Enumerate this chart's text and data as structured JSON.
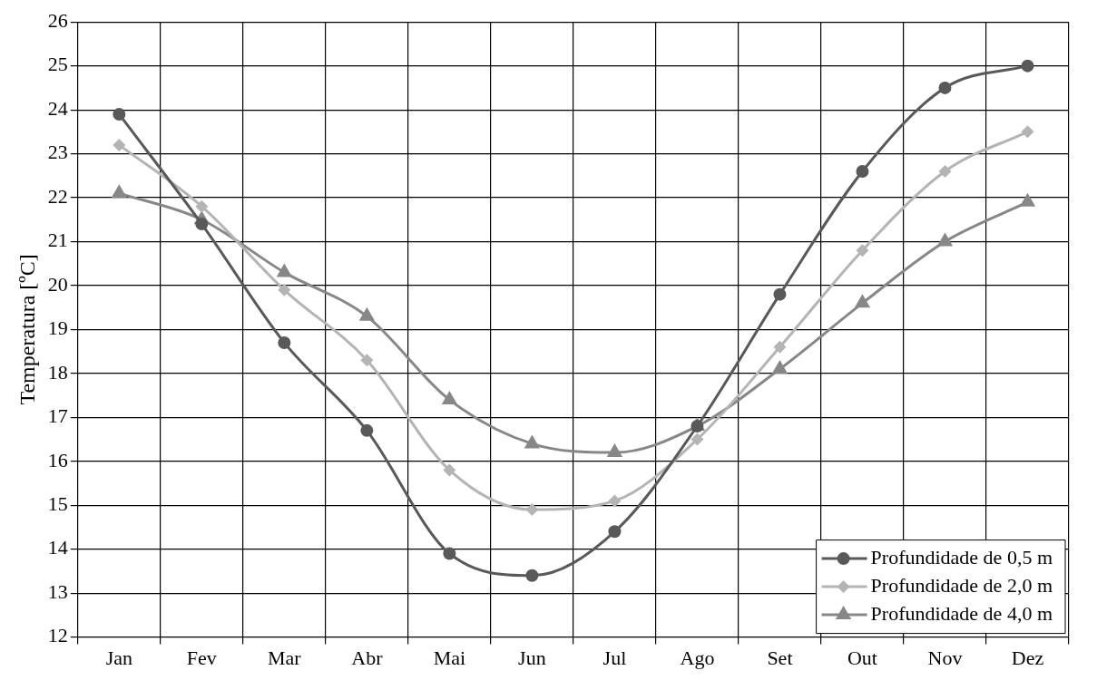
{
  "chart_data": {
    "type": "line",
    "ylabel": "Temperatura [ºC]",
    "categories": [
      "Jan",
      "Fev",
      "Mar",
      "Abr",
      "Mai",
      "Jun",
      "Jul",
      "Ago",
      "Set",
      "Out",
      "Nov",
      "Dez"
    ],
    "ylim": [
      12,
      26
    ],
    "yticks": [
      12,
      13,
      14,
      15,
      16,
      17,
      18,
      19,
      20,
      21,
      22,
      23,
      24,
      25,
      26
    ],
    "grid": true,
    "legend": "bottom right",
    "line_style": "solid",
    "series": [
      {
        "name": "Profundidade de 0,5 m",
        "color": "#595959",
        "marker": "circle",
        "values": [
          23.9,
          21.4,
          18.7,
          16.7,
          13.9,
          13.4,
          14.4,
          16.8,
          19.8,
          22.6,
          24.5,
          25.0
        ]
      },
      {
        "name": "Profundidade de 2,0 m",
        "color": "#b4b4b4",
        "marker": "diamond",
        "values": [
          23.2,
          21.8,
          19.9,
          18.3,
          15.8,
          14.9,
          15.1,
          16.5,
          18.6,
          20.8,
          22.6,
          23.5
        ]
      },
      {
        "name": "Profundidade de 4,0 m",
        "color": "#878787",
        "marker": "triangle",
        "values": [
          22.1,
          21.5,
          20.3,
          19.3,
          17.4,
          16.4,
          16.2,
          16.8,
          18.1,
          19.6,
          21.0,
          21.9
        ]
      }
    ]
  }
}
